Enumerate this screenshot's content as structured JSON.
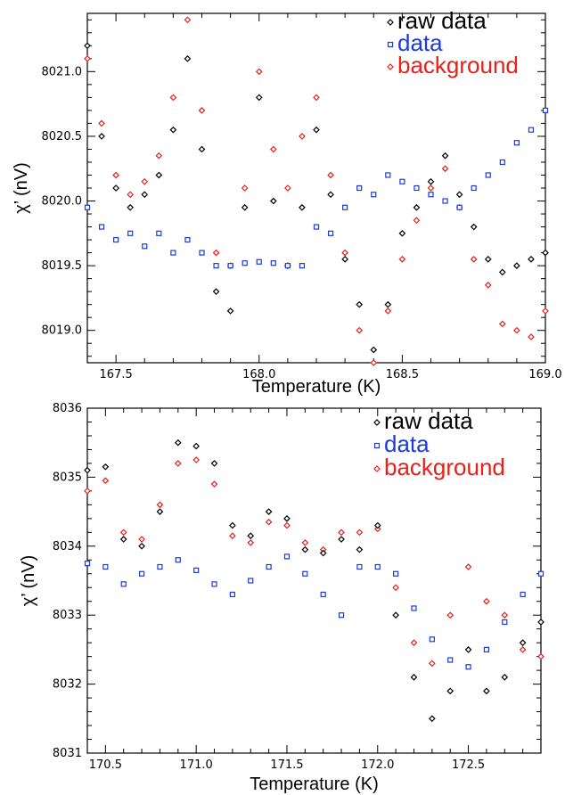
{
  "chart_data": [
    {
      "type": "scatter",
      "xlabel": "Temperature (K)",
      "ylabel": "χ’ (nV)",
      "xlim": [
        167.4,
        169.0
      ],
      "ylim": [
        8018.75,
        8021.45
      ],
      "xticks": [
        167.5,
        168.0,
        168.5,
        169.0
      ],
      "xtick_labels": [
        "167.5",
        "168.0",
        "168.5",
        "169.0"
      ],
      "yticks": [
        8019.0,
        8019.5,
        8020.0,
        8020.5,
        8021.0
      ],
      "ytick_labels": [
        "8019.0",
        "8019.5",
        "8020.0",
        "8020.5",
        "8021.0"
      ],
      "grid": false,
      "legend_position": "top-right",
      "series": [
        {
          "name": "raw data",
          "color": "#000000",
          "marker": "diamond",
          "x": [
            167.4,
            167.45,
            167.5,
            167.55,
            167.6,
            167.65,
            167.7,
            167.75,
            167.8,
            167.85,
            167.9,
            167.95,
            168.0,
            168.05,
            168.1,
            168.15,
            168.2,
            168.25,
            168.3,
            168.35,
            168.4,
            168.45,
            168.5,
            168.55,
            168.6,
            168.65,
            168.7,
            168.75,
            168.8,
            168.85,
            168.9,
            168.95,
            169.0
          ],
          "y": [
            8021.2,
            8020.5,
            8020.1,
            8019.95,
            8020.05,
            8020.2,
            8020.55,
            8021.1,
            8020.4,
            8019.3,
            8019.15,
            8019.95,
            8020.8,
            8020.0,
            8019.5,
            8019.95,
            8020.55,
            8020.05,
            8019.55,
            8019.2,
            8018.85,
            8019.2,
            8019.75,
            8019.95,
            8020.15,
            8020.35,
            8020.05,
            8019.8,
            8019.55,
            8019.45,
            8019.5,
            8019.55,
            8019.6
          ]
        },
        {
          "name": "data",
          "color": "#1a3adf",
          "marker": "square",
          "x": [
            167.4,
            167.45,
            167.5,
            167.55,
            167.6,
            167.65,
            167.7,
            167.75,
            167.8,
            167.85,
            167.9,
            167.95,
            168.0,
            168.05,
            168.1,
            168.15,
            168.2,
            168.25,
            168.3,
            168.35,
            168.4,
            168.45,
            168.5,
            168.55,
            168.6,
            168.65,
            168.7,
            168.75,
            168.8,
            168.85,
            168.9,
            168.95,
            169.0
          ],
          "y": [
            8019.95,
            8019.8,
            8019.7,
            8019.75,
            8019.65,
            8019.75,
            8019.6,
            8019.7,
            8019.6,
            8019.5,
            8019.5,
            8019.52,
            8019.53,
            8019.52,
            8019.5,
            8019.5,
            8019.8,
            8019.75,
            8019.95,
            8020.1,
            8020.05,
            8020.2,
            8020.15,
            8020.1,
            8020.05,
            8020.0,
            8019.95,
            8020.1,
            8020.2,
            8020.3,
            8020.45,
            8020.55,
            8020.7
          ]
        },
        {
          "name": "background",
          "color": "#e8201a",
          "marker": "diamond",
          "x": [
            167.4,
            167.45,
            167.5,
            167.55,
            167.6,
            167.65,
            167.7,
            167.75,
            167.8,
            167.85,
            167.9,
            167.95,
            168.0,
            168.05,
            168.1,
            168.15,
            168.2,
            168.25,
            168.3,
            168.35,
            168.4,
            168.45,
            168.5,
            168.55,
            168.6,
            168.65,
            168.7,
            168.75,
            168.8,
            168.85,
            168.9,
            168.95,
            169.0
          ],
          "y": [
            8021.1,
            8020.6,
            8020.2,
            8020.05,
            8020.15,
            8020.35,
            8020.8,
            8021.4,
            8020.7,
            8019.6,
            8019.5,
            8020.1,
            8021.0,
            8020.4,
            8020.1,
            8020.5,
            8020.8,
            8020.2,
            8019.6,
            8019.0,
            8018.75,
            8019.15,
            8019.55,
            8019.85,
            8020.1,
            8020.25,
            8019.95,
            8019.55,
            8019.35,
            8019.05,
            8019.0,
            8018.95,
            8019.15
          ]
        }
      ]
    },
    {
      "type": "scatter",
      "xlabel": "Temperature (K)",
      "ylabel": "χ’ (nV)",
      "xlim": [
        170.4,
        172.9
      ],
      "ylim": [
        8031.0,
        8036.0
      ],
      "xticks": [
        170.5,
        171.0,
        171.5,
        172.0,
        172.5
      ],
      "xtick_labels": [
        "170.5",
        "171.0",
        "171.5",
        "172.0",
        "172.5"
      ],
      "yticks": [
        8031,
        8032,
        8033,
        8034,
        8035,
        8036
      ],
      "ytick_labels": [
        "8031",
        "8032",
        "8033",
        "8034",
        "8035",
        "8036"
      ],
      "grid": false,
      "legend_position": "top-right",
      "series": [
        {
          "name": "raw data",
          "color": "#000000",
          "marker": "diamond",
          "x": [
            170.4,
            170.5,
            170.6,
            170.7,
            170.8,
            170.9,
            171.0,
            171.1,
            171.2,
            171.3,
            171.4,
            171.5,
            171.6,
            171.7,
            171.8,
            171.9,
            172.0,
            172.1,
            172.2,
            172.3,
            172.4,
            172.5,
            172.6,
            172.7,
            172.8,
            172.9
          ],
          "y": [
            8035.1,
            8035.15,
            8034.1,
            8034.0,
            8034.5,
            8035.5,
            8035.45,
            8035.2,
            8034.3,
            8034.15,
            8034.5,
            8034.4,
            8033.95,
            8033.9,
            8034.1,
            8033.95,
            8034.3,
            8033.0,
            8032.1,
            8031.5,
            8031.9,
            8032.5,
            8031.9,
            8032.1,
            8032.6,
            8032.9
          ]
        },
        {
          "name": "data",
          "color": "#1a3adf",
          "marker": "square",
          "x": [
            170.4,
            170.5,
            170.6,
            170.7,
            170.8,
            170.9,
            171.0,
            171.1,
            171.2,
            171.3,
            171.4,
            171.5,
            171.6,
            171.7,
            171.8,
            171.9,
            172.0,
            172.1,
            172.2,
            172.3,
            172.4,
            172.5,
            172.6,
            172.7,
            172.8,
            172.9
          ],
          "y": [
            8033.75,
            8033.7,
            8033.45,
            8033.6,
            8033.7,
            8033.8,
            8033.65,
            8033.45,
            8033.3,
            8033.5,
            8033.7,
            8033.85,
            8033.6,
            8033.3,
            8033.0,
            8033.7,
            8033.7,
            8033.6,
            8033.1,
            8032.65,
            8032.35,
            8032.25,
            8032.5,
            8032.9,
            8033.3,
            8033.6
          ]
        },
        {
          "name": "background",
          "color": "#e8201a",
          "marker": "diamond",
          "x": [
            170.4,
            170.5,
            170.6,
            170.7,
            170.8,
            170.9,
            171.0,
            171.1,
            171.2,
            171.3,
            171.4,
            171.5,
            171.6,
            171.7,
            171.8,
            171.9,
            172.0,
            172.1,
            172.2,
            172.3,
            172.4,
            172.5,
            172.6,
            172.7,
            172.8,
            172.9
          ],
          "y": [
            8034.8,
            8034.95,
            8034.2,
            8034.1,
            8034.6,
            8035.2,
            8035.25,
            8034.9,
            8034.15,
            8034.05,
            8034.35,
            8034.3,
            8034.05,
            8033.95,
            8034.2,
            8034.2,
            8034.25,
            8033.4,
            8032.6,
            8032.3,
            8033.0,
            8033.7,
            8033.2,
            8033.0,
            8032.5,
            8032.4
          ]
        }
      ]
    }
  ]
}
